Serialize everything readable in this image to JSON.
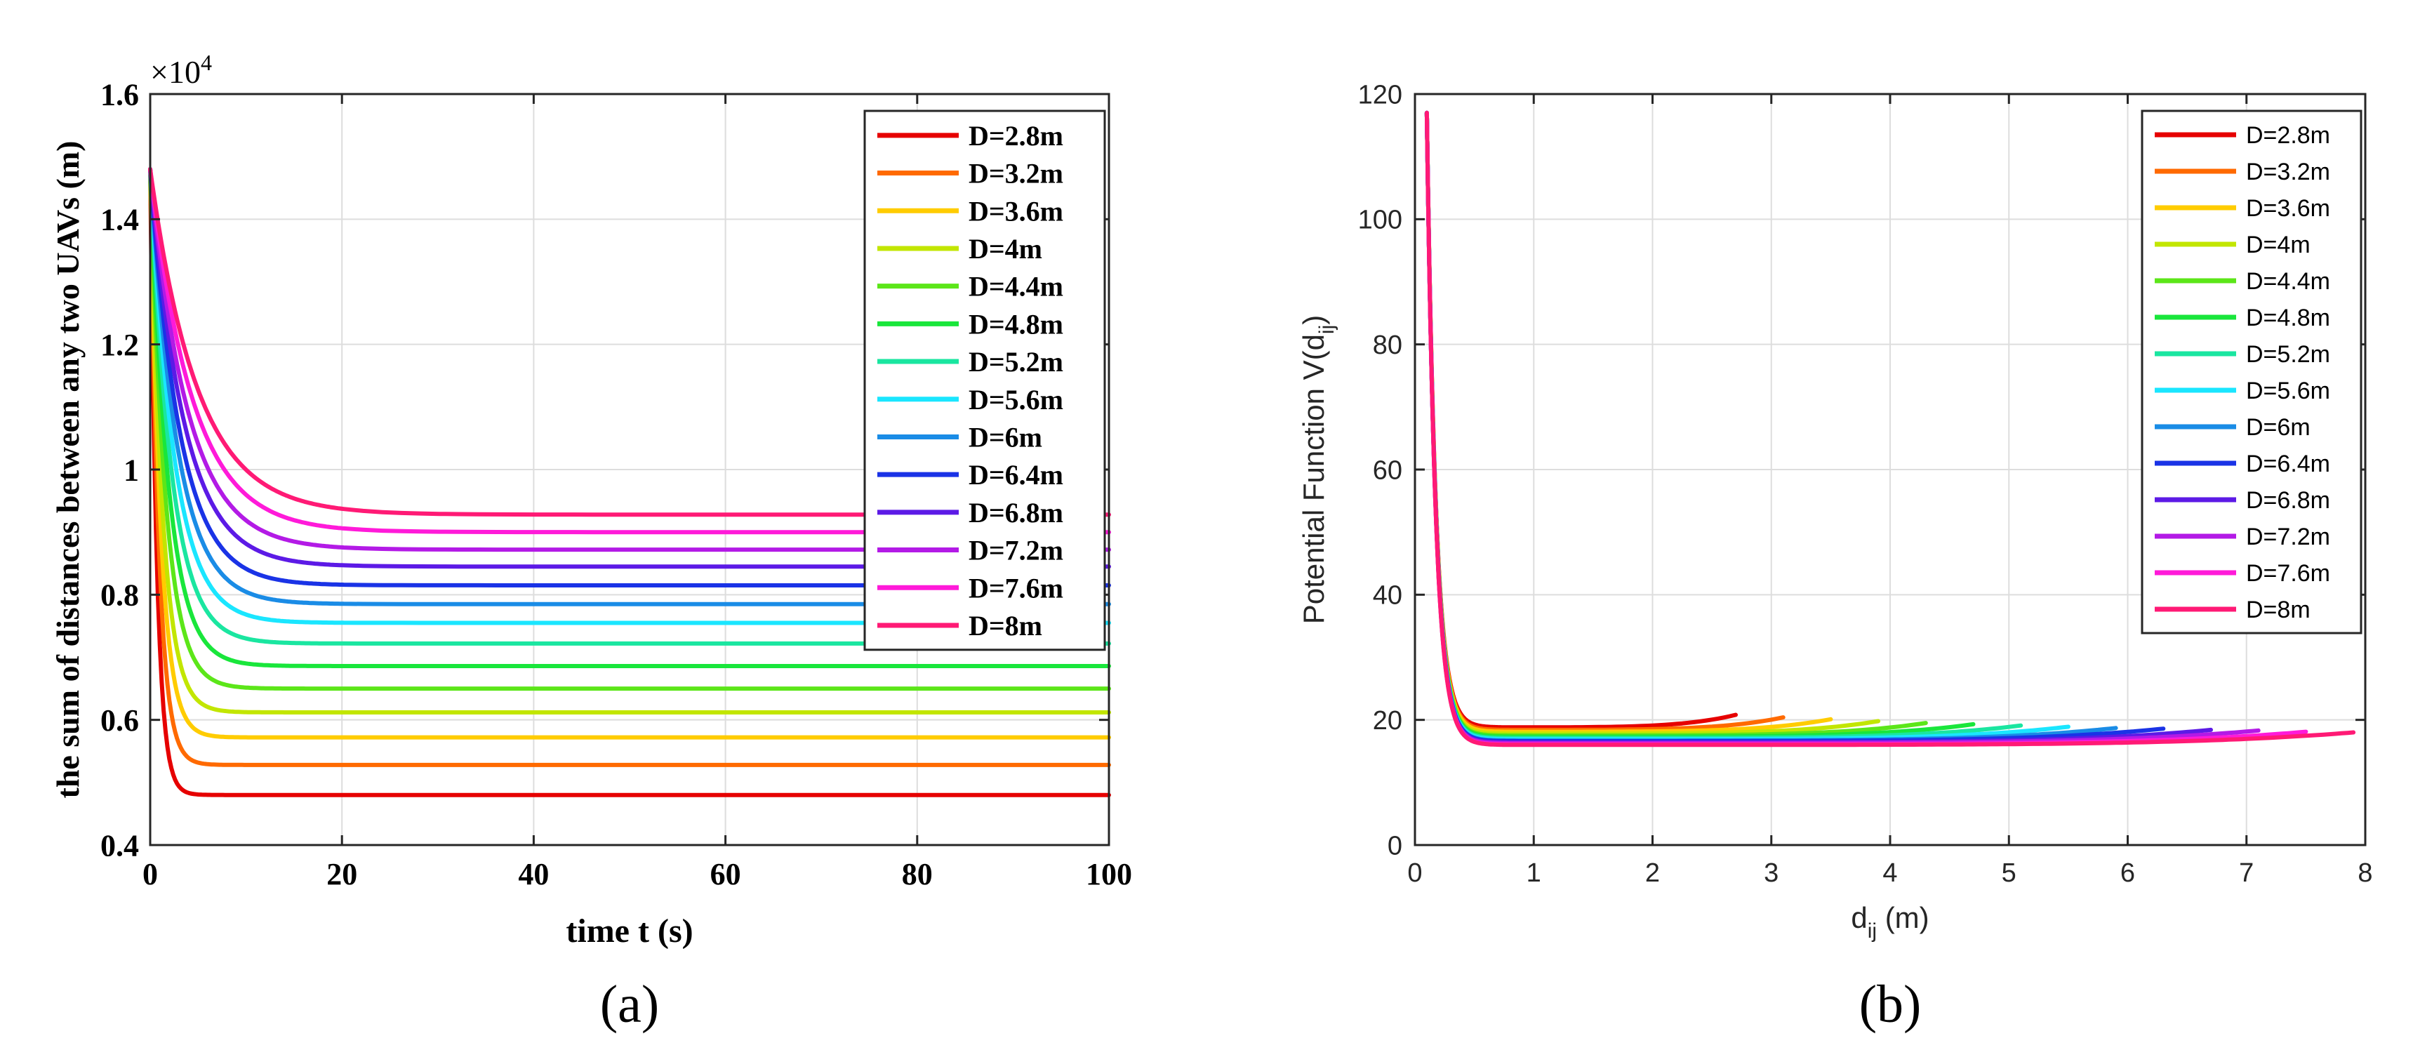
{
  "panels": [
    {
      "chart_data": {
        "type": "line",
        "title": "",
        "xlabel": "time t (s)",
        "ylabel": "the sum of distances between any two UAVs (m)",
        "exponent_label": "×10",
        "exponent_power": "4",
        "xlim": [
          0,
          100
        ],
        "ylim": [
          0.4,
          1.6
        ],
        "xticks": [
          0,
          20,
          40,
          60,
          80,
          100
        ],
        "xtick_labels": [
          "0",
          "20",
          "40",
          "60",
          "80",
          "100"
        ],
        "yticks": [
          0.4,
          0.6,
          0.8,
          1.0,
          1.2,
          1.4,
          1.6
        ],
        "ytick_labels": [
          "0.4",
          "0.6",
          "0.8",
          "1",
          "1.2",
          "1.4",
          "1.6"
        ],
        "grid": true,
        "legend_position": "top-right",
        "initial_value": 1.48,
        "series": [
          {
            "name": "D=2.8m",
            "color": "#e60000",
            "final": 0.48,
            "tau": 0.7
          },
          {
            "name": "D=3.2m",
            "color": "#ff6a00",
            "final": 0.528,
            "tau": 0.9
          },
          {
            "name": "D=3.6m",
            "color": "#ffcc00",
            "final": 0.572,
            "tau": 1.1
          },
          {
            "name": "D=4m",
            "color": "#c2e600",
            "final": 0.612,
            "tau": 1.3
          },
          {
            "name": "D=4.4m",
            "color": "#5ce619",
            "final": 0.65,
            "tau": 1.6
          },
          {
            "name": "D=4.8m",
            "color": "#19e63b",
            "final": 0.686,
            "tau": 1.9
          },
          {
            "name": "D=5.2m",
            "color": "#1ae6a0",
            "final": 0.722,
            "tau": 2.2
          },
          {
            "name": "D=5.6m",
            "color": "#1ae6ff",
            "final": 0.755,
            "tau": 2.5
          },
          {
            "name": "D=6m",
            "color": "#1a8ce6",
            "final": 0.785,
            "tau": 2.8
          },
          {
            "name": "D=6.4m",
            "color": "#1a33e6",
            "final": 0.815,
            "tau": 3.1
          },
          {
            "name": "D=6.8m",
            "color": "#5c1ae6",
            "final": 0.845,
            "tau": 3.5
          },
          {
            "name": "D=7.2m",
            "color": "#b31ae6",
            "final": 0.872,
            "tau": 3.9
          },
          {
            "name": "D=7.6m",
            "color": "#ff1ad9",
            "final": 0.9,
            "tau": 4.4
          },
          {
            "name": "D=8m",
            "color": "#ff1a75",
            "final": 0.928,
            "tau": 4.9
          }
        ]
      },
      "caption": "(a)"
    },
    {
      "chart_data": {
        "type": "line",
        "title": "",
        "xlabel_main": "d",
        "xlabel_sub": "ij",
        "xlabel_unit": " (m)",
        "ylabel_main": "Potential Function V(d",
        "ylabel_sub": "ij",
        "ylabel_end": ")",
        "xlim": [
          0,
          8
        ],
        "ylim": [
          0,
          120
        ],
        "xticks": [
          0,
          1,
          2,
          3,
          4,
          5,
          6,
          7,
          8
        ],
        "xtick_labels": [
          "0",
          "1",
          "2",
          "3",
          "4",
          "5",
          "6",
          "7",
          "8"
        ],
        "yticks": [
          0,
          20,
          40,
          60,
          80,
          100,
          120
        ],
        "ytick_labels": [
          "0",
          "20",
          "40",
          "60",
          "80",
          "100",
          "120"
        ],
        "grid": true,
        "legend_position": "top-right",
        "x_start": 0.1,
        "y_start": 117,
        "series": [
          {
            "name": "D=2.8m",
            "color": "#e60000",
            "x_end": 2.7,
            "y_floor": 18.8
          },
          {
            "name": "D=3.2m",
            "color": "#ff6a00",
            "x_end": 3.1,
            "y_floor": 18.4
          },
          {
            "name": "D=3.6m",
            "color": "#ffcc00",
            "x_end": 3.5,
            "y_floor": 18.1
          },
          {
            "name": "D=4m",
            "color": "#c2e600",
            "x_end": 3.9,
            "y_floor": 17.8
          },
          {
            "name": "D=4.4m",
            "color": "#5ce619",
            "x_end": 4.3,
            "y_floor": 17.5
          },
          {
            "name": "D=4.8m",
            "color": "#19e63b",
            "x_end": 4.7,
            "y_floor": 17.3
          },
          {
            "name": "D=5.2m",
            "color": "#1ae6a0",
            "x_end": 5.1,
            "y_floor": 17.1
          },
          {
            "name": "D=5.6m",
            "color": "#1ae6ff",
            "x_end": 5.5,
            "y_floor": 16.9
          },
          {
            "name": "D=6m",
            "color": "#1a8ce6",
            "x_end": 5.9,
            "y_floor": 16.7
          },
          {
            "name": "D=6.4m",
            "color": "#1a33e6",
            "x_end": 6.3,
            "y_floor": 16.6
          },
          {
            "name": "D=6.8m",
            "color": "#5c1ae6",
            "x_end": 6.7,
            "y_floor": 16.4
          },
          {
            "name": "D=7.2m",
            "color": "#b31ae6",
            "x_end": 7.1,
            "y_floor": 16.3
          },
          {
            "name": "D=7.6m",
            "color": "#ff1ad9",
            "x_end": 7.5,
            "y_floor": 16.1
          },
          {
            "name": "D=8m",
            "color": "#ff1a75",
            "x_end": 7.9,
            "y_floor": 16.0
          }
        ]
      },
      "caption": "(b)"
    }
  ]
}
